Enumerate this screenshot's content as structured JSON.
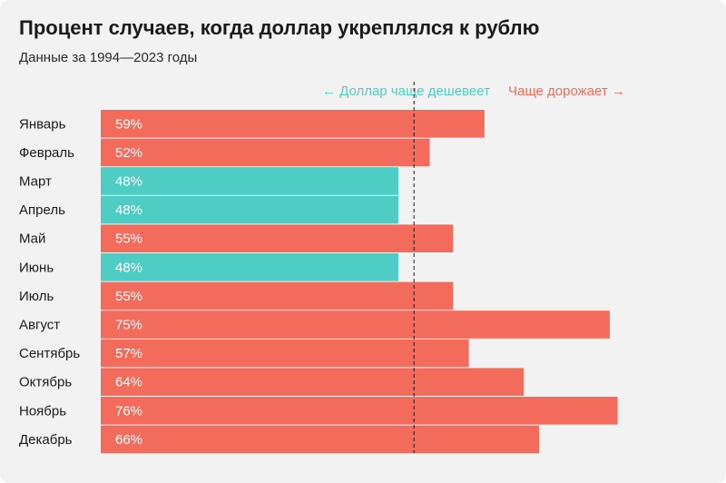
{
  "title": "Процент случаев, когда доллар укреплялся к рублю",
  "subtitle": "Данные за 1994—2023 годы",
  "colors": {
    "background": "#f2f2f2",
    "up": "#f26b5b",
    "down": "#4ecdc4",
    "text": "#1a1a1a"
  },
  "direction_labels": {
    "cheaper": "← Доллар чаще дешевеет",
    "pricier": "Чаще дорожает →"
  },
  "chart_data": {
    "type": "bar",
    "orientation": "horizontal",
    "title": "Процент случаев, когда доллар укреплялся к рублю",
    "subtitle": "Данные за 1994—2023 годы",
    "categories": [
      "Январь",
      "Февраль",
      "Март",
      "Апрель",
      "Май",
      "Июнь",
      "Июль",
      "Август",
      "Сентябрь",
      "Октябрь",
      "Ноябрь",
      "Декабрь"
    ],
    "values": [
      59,
      52,
      48,
      48,
      55,
      48,
      55,
      75,
      57,
      64,
      76,
      66
    ],
    "value_labels": [
      "59%",
      "52%",
      "48%",
      "48%",
      "55%",
      "48%",
      "55%",
      "75%",
      "57%",
      "64%",
      "76%",
      "66%"
    ],
    "reference_line": 50,
    "xlim": [
      10,
      77
    ],
    "grid": false,
    "legend": "none"
  }
}
